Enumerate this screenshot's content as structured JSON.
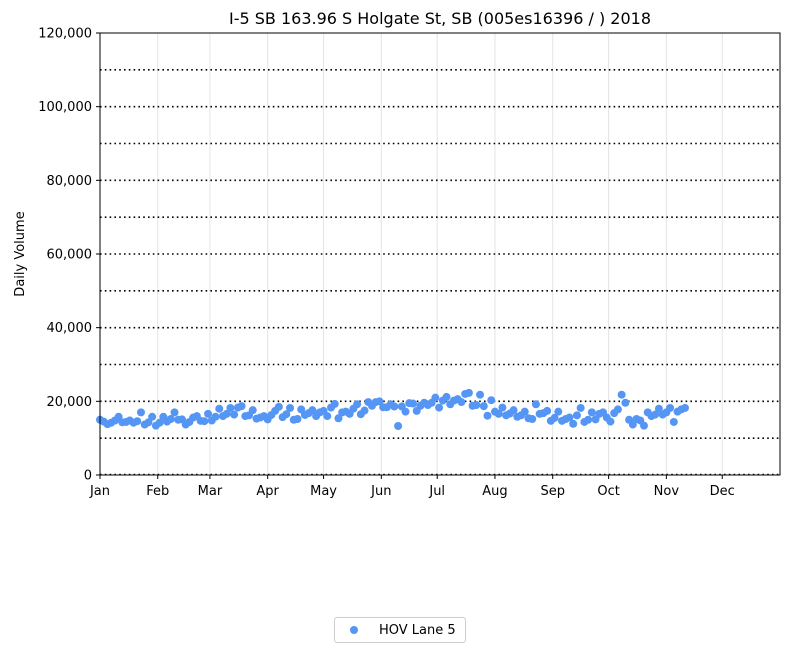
{
  "chart_data": {
    "type": "scatter",
    "title": "I-5  SB  163.96  S Holgate St, SB (005es16396 / ) 2018",
    "ylabel": "Daily Volume",
    "xlabel": "",
    "ylim": [
      0,
      120000
    ],
    "y_ticks": [
      0,
      20000,
      40000,
      60000,
      80000,
      100000,
      120000
    ],
    "y_tick_labels": [
      "0",
      "20,000",
      "40,000",
      "60,000",
      "80,000",
      "100,000",
      "120,000"
    ],
    "x_domain_days": [
      0,
      365
    ],
    "month_ticks": [
      {
        "label": "Jan",
        "day": 0
      },
      {
        "label": "Feb",
        "day": 31
      },
      {
        "label": "Mar",
        "day": 59
      },
      {
        "label": "Apr",
        "day": 90
      },
      {
        "label": "May",
        "day": 120
      },
      {
        "label": "Jun",
        "day": 151
      },
      {
        "label": "Jul",
        "day": 181
      },
      {
        "label": "Aug",
        "day": 212
      },
      {
        "label": "Sep",
        "day": 243
      },
      {
        "label": "Oct",
        "day": 273
      },
      {
        "label": "Nov",
        "day": 304
      },
      {
        "label": "Dec",
        "day": 334
      }
    ],
    "grid": {
      "horizontal_dotted_every": 10000,
      "vertical_light_at_month_starts": true
    },
    "series": [
      {
        "name": "HOV Lane 5",
        "color": "#5596f5",
        "points": [
          {
            "x": 0,
            "y": 15000
          },
          {
            "x": 2,
            "y": 14500
          },
          {
            "x": 4,
            "y": 13800
          },
          {
            "x": 6,
            "y": 14200
          },
          {
            "x": 8,
            "y": 14800
          },
          {
            "x": 10,
            "y": 15800
          },
          {
            "x": 12,
            "y": 14300
          },
          {
            "x": 14,
            "y": 14400
          },
          {
            "x": 16,
            "y": 14800
          },
          {
            "x": 18,
            "y": 14200
          },
          {
            "x": 20,
            "y": 14600
          },
          {
            "x": 22,
            "y": 17000
          },
          {
            "x": 24,
            "y": 13700
          },
          {
            "x": 26,
            "y": 14300
          },
          {
            "x": 28,
            "y": 15800
          },
          {
            "x": 30,
            "y": 13400
          },
          {
            "x": 32,
            "y": 14200
          },
          {
            "x": 34,
            "y": 15800
          },
          {
            "x": 36,
            "y": 14500
          },
          {
            "x": 38,
            "y": 15200
          },
          {
            "x": 40,
            "y": 17000
          },
          {
            "x": 42,
            "y": 15000
          },
          {
            "x": 44,
            "y": 15100
          },
          {
            "x": 46,
            "y": 13700
          },
          {
            "x": 48,
            "y": 14400
          },
          {
            "x": 50,
            "y": 15600
          },
          {
            "x": 52,
            "y": 16000
          },
          {
            "x": 54,
            "y": 14700
          },
          {
            "x": 56,
            "y": 14600
          },
          {
            "x": 58,
            "y": 16600
          },
          {
            "x": 60,
            "y": 14800
          },
          {
            "x": 62,
            "y": 15800
          },
          {
            "x": 64,
            "y": 18000
          },
          {
            "x": 66,
            "y": 16000
          },
          {
            "x": 68,
            "y": 16600
          },
          {
            "x": 70,
            "y": 18200
          },
          {
            "x": 72,
            "y": 16400
          },
          {
            "x": 74,
            "y": 18300
          },
          {
            "x": 76,
            "y": 18700
          },
          {
            "x": 78,
            "y": 16000
          },
          {
            "x": 80,
            "y": 16200
          },
          {
            "x": 82,
            "y": 17600
          },
          {
            "x": 84,
            "y": 15300
          },
          {
            "x": 86,
            "y": 15600
          },
          {
            "x": 88,
            "y": 16000
          },
          {
            "x": 90,
            "y": 15100
          },
          {
            "x": 92,
            "y": 16300
          },
          {
            "x": 94,
            "y": 17400
          },
          {
            "x": 96,
            "y": 18500
          },
          {
            "x": 98,
            "y": 15700
          },
          {
            "x": 100,
            "y": 16500
          },
          {
            "x": 102,
            "y": 18200
          },
          {
            "x": 104,
            "y": 15000
          },
          {
            "x": 106,
            "y": 15200
          },
          {
            "x": 108,
            "y": 17800
          },
          {
            "x": 110,
            "y": 16300
          },
          {
            "x": 112,
            "y": 16800
          },
          {
            "x": 114,
            "y": 17600
          },
          {
            "x": 116,
            "y": 16000
          },
          {
            "x": 118,
            "y": 17000
          },
          {
            "x": 120,
            "y": 17400
          },
          {
            "x": 122,
            "y": 16000
          },
          {
            "x": 124,
            "y": 18300
          },
          {
            "x": 126,
            "y": 19300
          },
          {
            "x": 128,
            "y": 15400
          },
          {
            "x": 130,
            "y": 17000
          },
          {
            "x": 132,
            "y": 17200
          },
          {
            "x": 134,
            "y": 16600
          },
          {
            "x": 136,
            "y": 18000
          },
          {
            "x": 138,
            "y": 19200
          },
          {
            "x": 140,
            "y": 16500
          },
          {
            "x": 142,
            "y": 17500
          },
          {
            "x": 144,
            "y": 19800
          },
          {
            "x": 146,
            "y": 18800
          },
          {
            "x": 148,
            "y": 19800
          },
          {
            "x": 150,
            "y": 20000
          },
          {
            "x": 152,
            "y": 18400
          },
          {
            "x": 154,
            "y": 18400
          },
          {
            "x": 156,
            "y": 19200
          },
          {
            "x": 158,
            "y": 18600
          },
          {
            "x": 160,
            "y": 13300
          },
          {
            "x": 162,
            "y": 18600
          },
          {
            "x": 164,
            "y": 17200
          },
          {
            "x": 166,
            "y": 19500
          },
          {
            "x": 168,
            "y": 19400
          },
          {
            "x": 170,
            "y": 17400
          },
          {
            "x": 172,
            "y": 18800
          },
          {
            "x": 174,
            "y": 19600
          },
          {
            "x": 176,
            "y": 19000
          },
          {
            "x": 178,
            "y": 19600
          },
          {
            "x": 180,
            "y": 21000
          },
          {
            "x": 182,
            "y": 18300
          },
          {
            "x": 184,
            "y": 20200
          },
          {
            "x": 186,
            "y": 21200
          },
          {
            "x": 188,
            "y": 19200
          },
          {
            "x": 190,
            "y": 20200
          },
          {
            "x": 192,
            "y": 20600
          },
          {
            "x": 194,
            "y": 19800
          },
          {
            "x": 196,
            "y": 22000
          },
          {
            "x": 198,
            "y": 22300
          },
          {
            "x": 200,
            "y": 18800
          },
          {
            "x": 202,
            "y": 19000
          },
          {
            "x": 204,
            "y": 21800
          },
          {
            "x": 206,
            "y": 18700
          },
          {
            "x": 208,
            "y": 16100
          },
          {
            "x": 210,
            "y": 20300
          },
          {
            "x": 212,
            "y": 17200
          },
          {
            "x": 214,
            "y": 16600
          },
          {
            "x": 216,
            "y": 18300
          },
          {
            "x": 218,
            "y": 16200
          },
          {
            "x": 220,
            "y": 16700
          },
          {
            "x": 222,
            "y": 17600
          },
          {
            "x": 224,
            "y": 15800
          },
          {
            "x": 226,
            "y": 16200
          },
          {
            "x": 228,
            "y": 17200
          },
          {
            "x": 230,
            "y": 15400
          },
          {
            "x": 232,
            "y": 15200
          },
          {
            "x": 234,
            "y": 19200
          },
          {
            "x": 236,
            "y": 16600
          },
          {
            "x": 238,
            "y": 16800
          },
          {
            "x": 240,
            "y": 17400
          },
          {
            "x": 242,
            "y": 14700
          },
          {
            "x": 244,
            "y": 15500
          },
          {
            "x": 246,
            "y": 17200
          },
          {
            "x": 248,
            "y": 14700
          },
          {
            "x": 250,
            "y": 15200
          },
          {
            "x": 252,
            "y": 15600
          },
          {
            "x": 254,
            "y": 13900
          },
          {
            "x": 256,
            "y": 16200
          },
          {
            "x": 258,
            "y": 18200
          },
          {
            "x": 260,
            "y": 14400
          },
          {
            "x": 262,
            "y": 15000
          },
          {
            "x": 264,
            "y": 17000
          },
          {
            "x": 266,
            "y": 15100
          },
          {
            "x": 268,
            "y": 16600
          },
          {
            "x": 270,
            "y": 17000
          },
          {
            "x": 272,
            "y": 15600
          },
          {
            "x": 274,
            "y": 14500
          },
          {
            "x": 276,
            "y": 16800
          },
          {
            "x": 278,
            "y": 17800
          },
          {
            "x": 280,
            "y": 21800
          },
          {
            "x": 282,
            "y": 19600
          },
          {
            "x": 284,
            "y": 15000
          },
          {
            "x": 286,
            "y": 13700
          },
          {
            "x": 288,
            "y": 15200
          },
          {
            "x": 290,
            "y": 14800
          },
          {
            "x": 292,
            "y": 13400
          },
          {
            "x": 294,
            "y": 17000
          },
          {
            "x": 296,
            "y": 16000
          },
          {
            "x": 298,
            "y": 16400
          },
          {
            "x": 300,
            "y": 18000
          },
          {
            "x": 302,
            "y": 16400
          },
          {
            "x": 304,
            "y": 17000
          },
          {
            "x": 306,
            "y": 18200
          },
          {
            "x": 308,
            "y": 14400
          },
          {
            "x": 310,
            "y": 17200
          },
          {
            "x": 312,
            "y": 17800
          },
          {
            "x": 314,
            "y": 18200
          }
        ]
      }
    ],
    "legend": {
      "placement": "bottom-center"
    }
  }
}
